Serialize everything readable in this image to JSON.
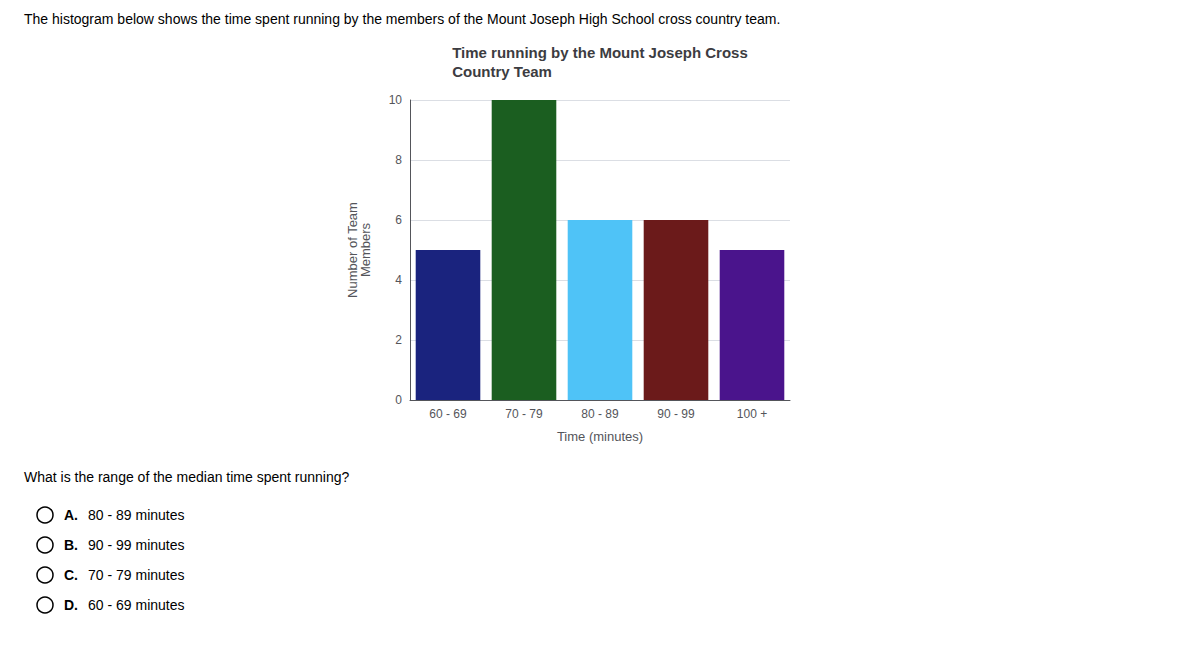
{
  "chart_data": {
    "type": "bar",
    "title": "Time running by the Mount Joseph Cross\nCountry Team",
    "xlabel": "Time (minutes)",
    "ylabel": "Number of Team\nMembers",
    "categories": [
      "60 - 69",
      "70 - 79",
      "80 - 89",
      "90 - 99",
      "100 +"
    ],
    "values": [
      5,
      10,
      6,
      6,
      5
    ],
    "colors": [
      "#1a237e",
      "#1b5e20",
      "#4fc3f7",
      "#6b1a1a",
      "#4a148c"
    ],
    "ylim": [
      0,
      10
    ],
    "yticks": [
      0,
      2,
      4,
      6,
      8,
      10
    ],
    "grid": true,
    "annotations": [
      "The histogram below shows the time spent running by the members of the Mount Joseph High School cross country team.",
      "What is the range of the median time spent running?",
      "A.",
      "80 - 89 minutes",
      "B.",
      "90 - 99 minutes",
      "C.",
      "70 - 79 minutes",
      "D.",
      "60 - 69 minutes"
    ]
  }
}
